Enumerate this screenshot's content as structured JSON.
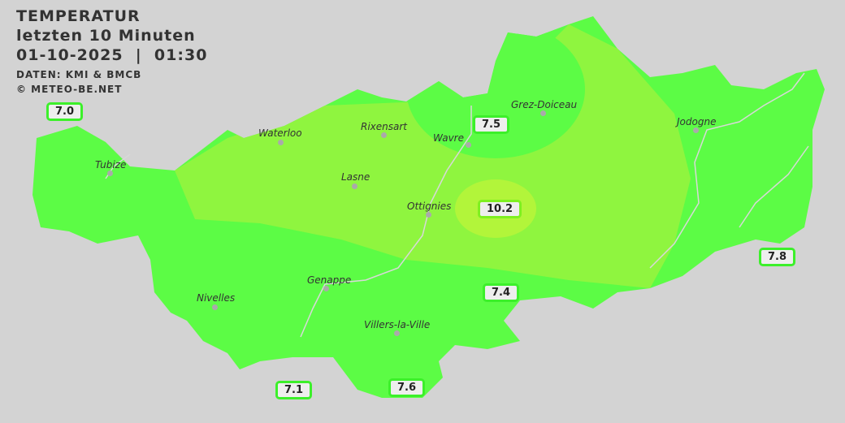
{
  "header": {
    "title": "TEMPERATUR",
    "subtitle": "letzten 10 Minuten",
    "datetime": "01-10-2025  |  01:30",
    "source": "DATEN: KMI & BMCB",
    "copyright": "© METEO-BE.NET"
  },
  "colors": {
    "background": "#d3d3d3",
    "temp_7": "#5cfc45",
    "temp_8_9": "#8ff53f",
    "temp_10": "#b2f53a",
    "river": "#d8d8d8"
  },
  "towns": [
    {
      "name": "Waterloo"
    },
    {
      "name": "Rixensart"
    },
    {
      "name": "Grez-Doiceau"
    },
    {
      "name": "Wavre"
    },
    {
      "name": "Jodogne"
    },
    {
      "name": "Tubize"
    },
    {
      "name": "Lasne"
    },
    {
      "name": "Ottignies"
    },
    {
      "name": "Genappe"
    },
    {
      "name": "Nivelles"
    },
    {
      "name": "Villers-la-Ville"
    }
  ],
  "stations": [
    {
      "value": "7.0"
    },
    {
      "value": "7.5"
    },
    {
      "value": "10.2"
    },
    {
      "value": "7.8"
    },
    {
      "value": "7.4"
    },
    {
      "value": "7.1"
    },
    {
      "value": "7.6"
    }
  ]
}
